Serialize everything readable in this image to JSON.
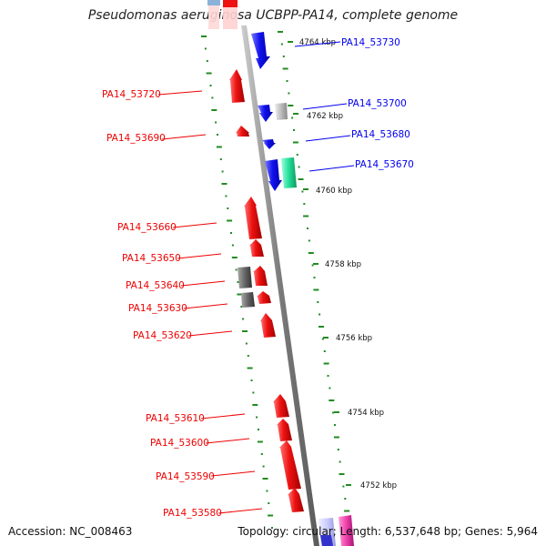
{
  "header": {
    "title": "Pseudomonas aeruginosa UCBPP-PA14, complete genome"
  },
  "footer": {
    "accession": "Accession: NC_008463",
    "topology": "Topology: circular; Length: 6,537,648 bp; Genes: 5,964"
  },
  "colors": {
    "forward_strand": "#0000ee",
    "reverse_strand": "#ee0000",
    "backbone": "#808080",
    "tick": "#228b22",
    "grey_feature": "#666666",
    "light_grey_feature": "#bbbbbb",
    "green_feature": "#22dd99",
    "pink_feature": "#ee44aa",
    "lavender_feature": "#ccccff"
  },
  "kbp_markers": [
    "4764 kbp",
    "4762 kbp",
    "4760 kbp",
    "4758 kbp",
    "4756 kbp",
    "4754 kbp",
    "4752 kbp"
  ],
  "forward_genes": [
    "PA14_53730",
    "PA14_53700",
    "PA14_53680",
    "PA14_53670"
  ],
  "reverse_genes": [
    "PA14_53720",
    "PA14_53690",
    "PA14_53660",
    "PA14_53650",
    "PA14_53640",
    "PA14_53630",
    "PA14_53620",
    "PA14_53610",
    "PA14_53600",
    "PA14_53590",
    "PA14_53580"
  ]
}
